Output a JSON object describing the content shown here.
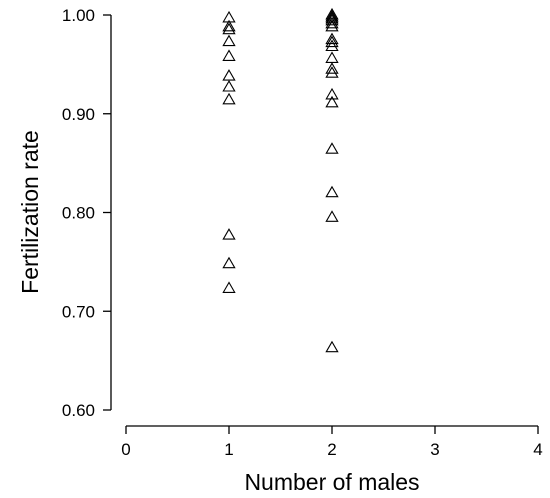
{
  "chart_data": {
    "type": "scatter",
    "title": "",
    "xlabel": "Number of males",
    "ylabel": "Fertilization rate",
    "xlim": [
      0,
      4
    ],
    "ylim": [
      0.6,
      1.0
    ],
    "x_ticks": [
      "0",
      "1",
      "2",
      "3",
      "4"
    ],
    "y_ticks": [
      "0.60",
      "0.70",
      "0.80",
      "0.90",
      "1.00"
    ],
    "grid": false,
    "legend": "none",
    "marker": "open-triangle",
    "points": [
      {
        "x": 1,
        "y": 0.997
      },
      {
        "x": 1,
        "y": 0.988
      },
      {
        "x": 1,
        "y": 0.985
      },
      {
        "x": 1,
        "y": 0.973
      },
      {
        "x": 1,
        "y": 0.958
      },
      {
        "x": 1,
        "y": 0.938
      },
      {
        "x": 1,
        "y": 0.927
      },
      {
        "x": 1,
        "y": 0.914
      },
      {
        "x": 1,
        "y": 0.777
      },
      {
        "x": 1,
        "y": 0.748
      },
      {
        "x": 1,
        "y": 0.723
      },
      {
        "x": 2,
        "y": 1.0
      },
      {
        "x": 2,
        "y": 0.998
      },
      {
        "x": 2,
        "y": 0.996
      },
      {
        "x": 2,
        "y": 0.994
      },
      {
        "x": 2,
        "y": 0.991
      },
      {
        "x": 2,
        "y": 0.988
      },
      {
        "x": 2,
        "y": 0.975
      },
      {
        "x": 2,
        "y": 0.972
      },
      {
        "x": 2,
        "y": 0.968
      },
      {
        "x": 2,
        "y": 0.956
      },
      {
        "x": 2,
        "y": 0.945
      },
      {
        "x": 2,
        "y": 0.941
      },
      {
        "x": 2,
        "y": 0.919
      },
      {
        "x": 2,
        "y": 0.911
      },
      {
        "x": 2,
        "y": 0.864
      },
      {
        "x": 2,
        "y": 0.82
      },
      {
        "x": 2,
        "y": 0.795
      },
      {
        "x": 2,
        "y": 0.663
      }
    ]
  }
}
